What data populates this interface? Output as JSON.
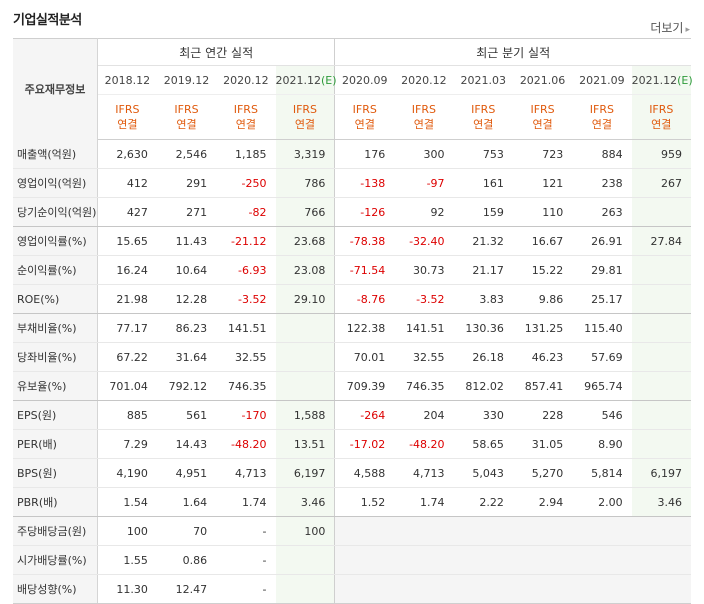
{
  "title": "기업실적분석",
  "more": "더보기",
  "stub_label": "주요재무정보",
  "groups": {
    "annual": "최근 연간 실적",
    "quarter": "최근 분기 실적"
  },
  "periods": [
    {
      "label": "2018.12",
      "est": false
    },
    {
      "label": "2019.12",
      "est": false
    },
    {
      "label": "2020.12",
      "est": false
    },
    {
      "label": "2021.12",
      "est": true
    },
    {
      "label": "2020.09",
      "est": false
    },
    {
      "label": "2020.12",
      "est": false
    },
    {
      "label": "2021.03",
      "est": false
    },
    {
      "label": "2021.06",
      "est": false
    },
    {
      "label": "2021.09",
      "est": false
    },
    {
      "label": "2021.12",
      "est": true
    }
  ],
  "est_mark": "(E)",
  "ifrs": "IFRS",
  "consol": "연결",
  "rows": [
    {
      "label": "매출액(억원)",
      "values": [
        "2,630",
        "2,546",
        "1,185",
        "3,319",
        "176",
        "300",
        "753",
        "723",
        "884",
        "959"
      ],
      "group_end": false
    },
    {
      "label": "영업이익(억원)",
      "values": [
        "412",
        "291",
        "-250",
        "786",
        "-138",
        "-97",
        "161",
        "121",
        "238",
        "267"
      ],
      "group_end": false
    },
    {
      "label": "당기순이익(억원)",
      "values": [
        "427",
        "271",
        "-82",
        "766",
        "-126",
        "92",
        "159",
        "110",
        "263",
        ""
      ],
      "group_end": true
    },
    {
      "label": "영업이익률(%)",
      "values": [
        "15.65",
        "11.43",
        "-21.12",
        "23.68",
        "-78.38",
        "-32.40",
        "21.32",
        "16.67",
        "26.91",
        "27.84"
      ],
      "group_end": false
    },
    {
      "label": "순이익률(%)",
      "values": [
        "16.24",
        "10.64",
        "-6.93",
        "23.08",
        "-71.54",
        "30.73",
        "21.17",
        "15.22",
        "29.81",
        ""
      ],
      "group_end": false
    },
    {
      "label": "ROE(%)",
      "values": [
        "21.98",
        "12.28",
        "-3.52",
        "29.10",
        "-8.76",
        "-3.52",
        "3.83",
        "9.86",
        "25.17",
        ""
      ],
      "group_end": true
    },
    {
      "label": "부채비율(%)",
      "values": [
        "77.17",
        "86.23",
        "141.51",
        "",
        "122.38",
        "141.51",
        "130.36",
        "131.25",
        "115.40",
        ""
      ],
      "group_end": false
    },
    {
      "label": "당좌비율(%)",
      "values": [
        "67.22",
        "31.64",
        "32.55",
        "",
        "70.01",
        "32.55",
        "26.18",
        "46.23",
        "57.69",
        ""
      ],
      "group_end": false
    },
    {
      "label": "유보율(%)",
      "values": [
        "701.04",
        "792.12",
        "746.35",
        "",
        "709.39",
        "746.35",
        "812.02",
        "857.41",
        "965.74",
        ""
      ],
      "group_end": true
    },
    {
      "label": "EPS(원)",
      "values": [
        "885",
        "561",
        "-170",
        "1,588",
        "-264",
        "204",
        "330",
        "228",
        "546",
        ""
      ],
      "group_end": false
    },
    {
      "label": "PER(배)",
      "values": [
        "7.29",
        "14.43",
        "-48.20",
        "13.51",
        "-17.02",
        "-48.20",
        "58.65",
        "31.05",
        "8.90",
        ""
      ],
      "group_end": false
    },
    {
      "label": "BPS(원)",
      "values": [
        "4,190",
        "4,951",
        "4,713",
        "6,197",
        "4,588",
        "4,713",
        "5,043",
        "5,270",
        "5,814",
        "6,197"
      ],
      "group_end": false
    },
    {
      "label": "PBR(배)",
      "values": [
        "1.54",
        "1.64",
        "1.74",
        "3.46",
        "1.52",
        "1.74",
        "2.22",
        "2.94",
        "2.00",
        "3.46"
      ],
      "group_end": true
    },
    {
      "label": "주당배당금(원)",
      "values": [
        "100",
        "70",
        "-",
        "100",
        "",
        "",
        "",
        "",
        "",
        ""
      ],
      "group_end": false,
      "q_gap": true
    },
    {
      "label": "시가배당률(%)",
      "values": [
        "1.55",
        "0.86",
        "-",
        "",
        "",
        "",
        "",
        "",
        "",
        ""
      ],
      "group_end": false,
      "q_gap": true
    },
    {
      "label": "배당성향(%)",
      "values": [
        "11.30",
        "12.47",
        "-",
        "",
        "",
        "",
        "",
        "",
        "",
        ""
      ],
      "group_end": false,
      "q_gap": true
    }
  ]
}
